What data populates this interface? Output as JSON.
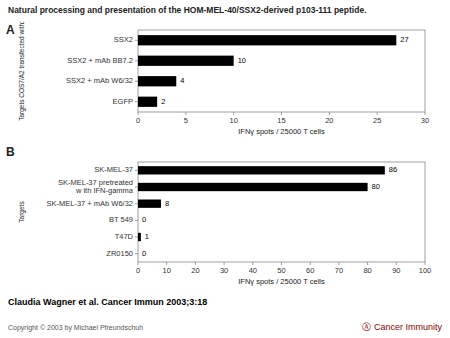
{
  "title": "Natural processing and presentation of the HOM-MEL-40/SSX2-derived p103-111 peptide.",
  "annotations": [
    "Claudia Wagner et al. Cancer Immun 2003;3:18",
    "Copyright © 2003 by Michael Pfreundschuh",
    "Ⓐ  Cancer Immunity"
  ],
  "chart_data": [
    {
      "type": "bar",
      "orientation": "horizontal",
      "title": "A",
      "categories": [
        "SSX2",
        "SSX2 + mAb BB7.2",
        "SSX2 + mAb W6/32",
        "EGFP"
      ],
      "values": [
        27,
        10,
        4,
        2
      ],
      "data_labels": true,
      "xlabel": "IFNγ spots / 25000 T cells",
      "ylabel": "Targets COS7/A2 transfected with:",
      "xlim": [
        0,
        30
      ],
      "xticks": [
        0,
        5,
        10,
        15,
        20,
        25,
        30
      ],
      "color": "#000000"
    },
    {
      "type": "bar",
      "orientation": "horizontal",
      "title": "B",
      "categories": [
        "SK-MEL-37",
        "SK-MEL-37 pretreated\nw ith IFN-gamma",
        "SK-MEL-37 + mAb W6/32",
        "BT 549",
        "T47D",
        "ZR0150"
      ],
      "values": [
        86,
        80,
        8,
        0,
        1,
        0
      ],
      "data_labels": true,
      "xlabel": "IFNγ spots / 25000 T cells",
      "ylabel": "Targets",
      "xlim": [
        0,
        100
      ],
      "xticks": [
        0,
        10,
        20,
        30,
        40,
        50,
        60,
        70,
        80,
        90,
        100
      ],
      "color": "#000000"
    }
  ]
}
